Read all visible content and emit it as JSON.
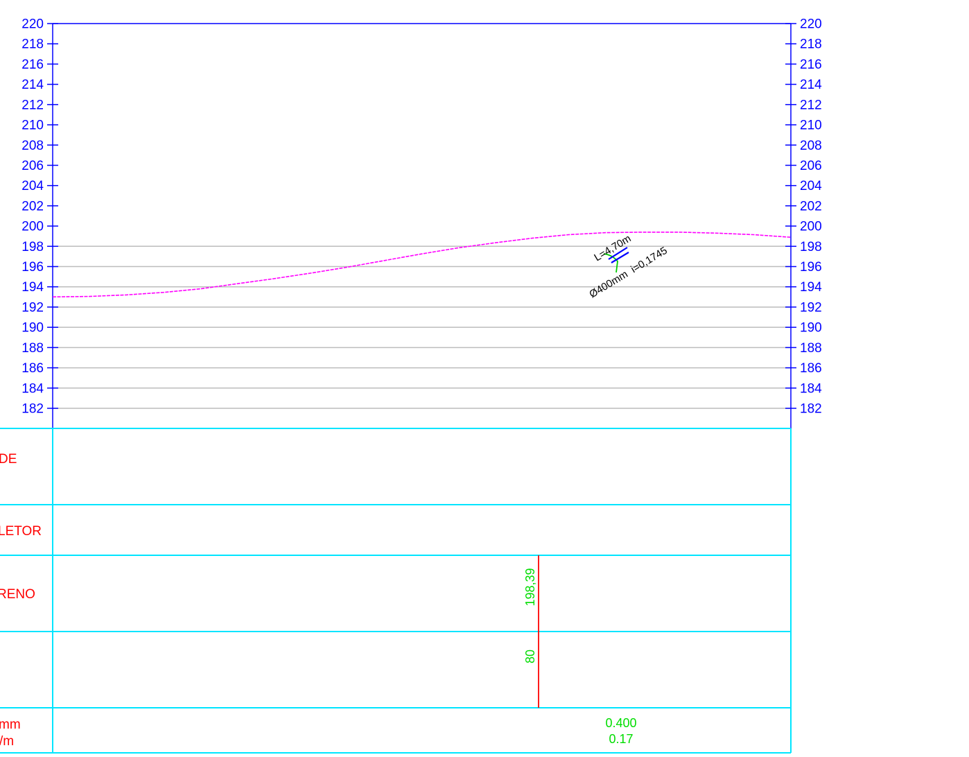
{
  "chart_data": {
    "type": "line",
    "title": "",
    "xlabel": "",
    "ylabel": "",
    "ylim": [
      182,
      220
    ],
    "y_ticks": [
      220,
      218,
      216,
      214,
      212,
      210,
      208,
      206,
      204,
      202,
      200,
      198,
      196,
      194,
      192,
      190,
      188,
      186,
      184,
      182
    ],
    "grid": true,
    "terrain_profile": {
      "name": "",
      "color": "#ff00ff",
      "x": [
        0,
        5,
        10,
        15,
        20,
        25,
        30,
        35,
        40,
        45,
        50,
        55,
        60,
        65,
        70,
        75,
        80,
        85,
        90,
        95,
        100
      ],
      "y": [
        193.0,
        193.05,
        193.2,
        193.45,
        193.8,
        194.3,
        194.8,
        195.35,
        195.95,
        196.6,
        197.25,
        197.85,
        198.35,
        198.8,
        199.15,
        199.35,
        199.4,
        199.4,
        199.3,
        199.15,
        198.9
      ]
    },
    "pipe": {
      "length_label": "L=4,70m",
      "spec_label": "Ø400mm  i=0,1745"
    }
  },
  "table": {
    "rows": [
      {
        "label": "DE"
      },
      {
        "label": "LETOR"
      },
      {
        "label": "RENO"
      },
      {
        "label": ""
      },
      {
        "label_lines": [
          "mm",
          "/m"
        ]
      }
    ],
    "station_terrain_value": "198,39",
    "station_index_value": "80",
    "pipe_diameter_value": "0.400",
    "pipe_slope_value": "0.17"
  },
  "colors": {
    "axis": "#0000ff",
    "grid": "#bcbcbc",
    "table_lines": "#00e5ff",
    "row_labels": "#ff0000",
    "values": "#00dd00",
    "station_line": "#ff0000",
    "profile": "#ff00ff",
    "annotation": "#000000",
    "pipe_symbol": "#0000ff",
    "pipe_link": "#00cc00"
  }
}
